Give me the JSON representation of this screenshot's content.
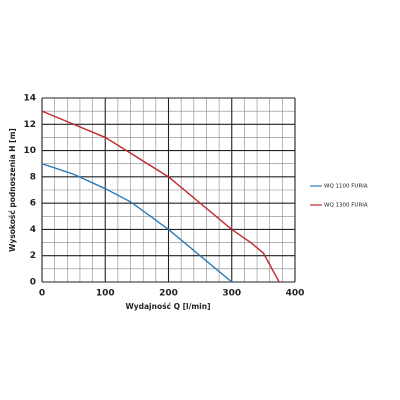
{
  "chart_data": {
    "type": "line",
    "x_label": "Wydajność Q [l/min]",
    "y_label": "Wysokość podnoszenia H [m]",
    "xlim": [
      0,
      400
    ],
    "ylim": [
      0,
      14
    ],
    "xticks": [
      0,
      100,
      200,
      300,
      400
    ],
    "yticks": [
      0,
      2,
      4,
      6,
      8,
      10,
      12,
      14
    ],
    "xminor": [
      20,
      40,
      60,
      80,
      120,
      140,
      160,
      180,
      220,
      240,
      260,
      280,
      320,
      340,
      360,
      380
    ],
    "yminor": [
      1,
      3,
      5,
      7,
      9,
      11,
      13
    ],
    "grid": true,
    "legend": "right",
    "series": [
      {
        "name": "WQ 1100 FURIA",
        "color": "#2b7bba",
        "x": [
          0,
          50,
          100,
          140,
          200,
          250,
          300
        ],
        "values": [
          9,
          8.2,
          7.1,
          6.1,
          4,
          2,
          0
        ]
      },
      {
        "name": "WQ 1300 FURIA",
        "color": "#c1272d",
        "x": [
          0,
          50,
          100,
          150,
          200,
          250,
          300,
          330,
          350,
          375
        ],
        "values": [
          13,
          12,
          11,
          9.5,
          8,
          6,
          4,
          3,
          2.2,
          0
        ]
      }
    ]
  }
}
